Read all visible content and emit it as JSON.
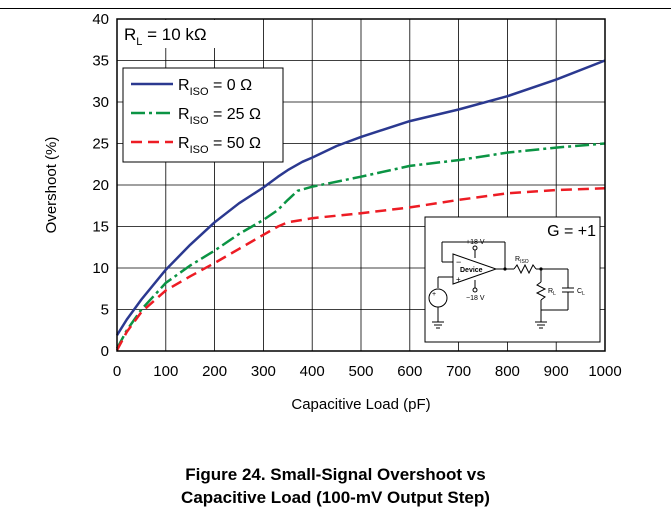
{
  "chart_data": {
    "type": "line",
    "xlabel": "Capacitive Load (pF)",
    "ylabel": "Overshoot (%)",
    "xlim": [
      0,
      1000
    ],
    "ylim": [
      0,
      40
    ],
    "xticks": [
      "0",
      "100",
      "200",
      "300",
      "400",
      "500",
      "600",
      "700",
      "800",
      "900",
      "1000"
    ],
    "yticks": [
      "0",
      "5",
      "10",
      "15",
      "20",
      "25",
      "30",
      "35",
      "40"
    ],
    "grid": true,
    "legend_position": "top-left",
    "annotation": {
      "main": "R",
      "sub": "L",
      "rest": " = 10 kΩ"
    },
    "series": [
      {
        "name_main": "R",
        "name_sub": "ISO",
        "name_rest": " = 0 Ω",
        "color": "#2b3990",
        "dash": "solid",
        "x": [
          0,
          20,
          50,
          100,
          150,
          200,
          250,
          300,
          330,
          350,
          380,
          400,
          450,
          500,
          600,
          700,
          800,
          900,
          1000
        ],
        "y": [
          1.9,
          3.8,
          6.2,
          9.8,
          12.8,
          15.5,
          17.8,
          19.7,
          21.0,
          21.8,
          22.8,
          23.3,
          24.7,
          25.8,
          27.7,
          29.1,
          30.7,
          32.7,
          35.0
        ]
      },
      {
        "name_main": "R",
        "name_sub": "ISO",
        "name_rest": " = 25 Ω",
        "color": "#0b9444",
        "dash": "dashdot",
        "x": [
          0,
          20,
          50,
          100,
          150,
          200,
          250,
          300,
          330,
          350,
          370,
          400,
          500,
          600,
          700,
          800,
          900,
          1000
        ],
        "y": [
          0.3,
          2.5,
          5.0,
          8.2,
          10.3,
          12.1,
          14.1,
          15.8,
          17.0,
          18.2,
          19.3,
          19.8,
          21.0,
          22.3,
          23.0,
          23.9,
          24.5,
          25.0
        ]
      },
      {
        "name_main": "R",
        "name_sub": "ISO",
        "name_rest": " = 50 Ω",
        "color": "#ed1c24",
        "dash": "dashed",
        "x": [
          0,
          20,
          50,
          100,
          150,
          200,
          250,
          300,
          330,
          350,
          380,
          400,
          500,
          600,
          700,
          800,
          900,
          1000
        ],
        "y": [
          0.1,
          2.3,
          4.7,
          7.3,
          9.0,
          10.6,
          12.3,
          14.0,
          15.0,
          15.5,
          15.8,
          16.0,
          16.6,
          17.3,
          18.2,
          19.0,
          19.4,
          19.6
        ]
      }
    ],
    "inset": {
      "gain": "G = +1",
      "device": "Device",
      "supply_pos": "+18 V",
      "supply_neg": "−18 V",
      "riso_main": "R",
      "riso_sub": "ISO",
      "rl_main": "R",
      "rl_sub": "L",
      "cl_main": "C",
      "cl_sub": "L"
    }
  },
  "caption": {
    "line1": "Figure 24. Small-Signal Overshoot vs",
    "line2": "Capacitive Load (100-mV Output Step)"
  }
}
